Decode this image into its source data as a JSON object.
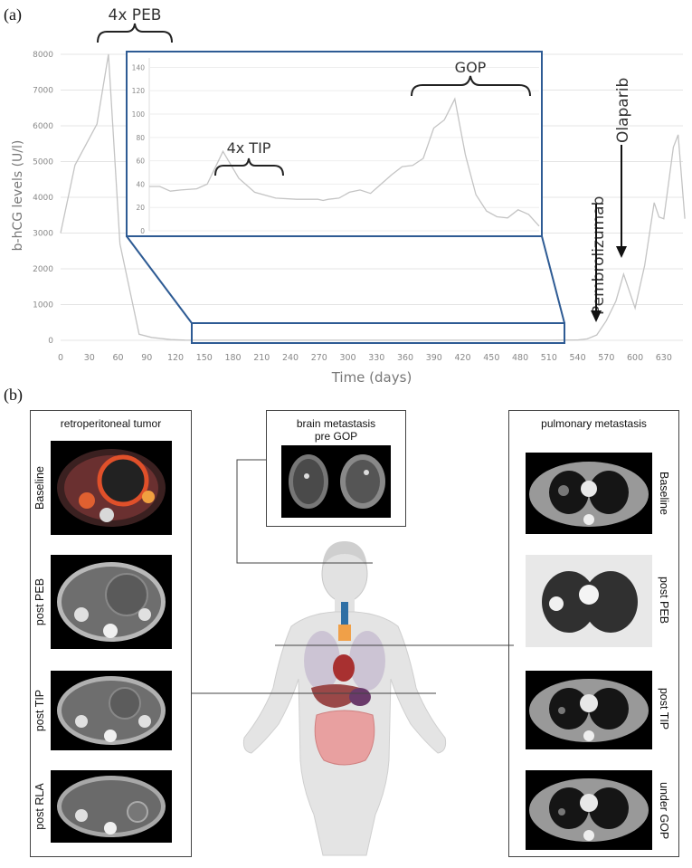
{
  "panel_a_label": "(a)",
  "panel_b_label": "(b)",
  "chart_data": {
    "type": "line",
    "title": "",
    "xlabel": "Time (days)",
    "ylabel": "b-hCG levels (U/l)",
    "xlim": [
      0,
      650
    ],
    "ylim": [
      0,
      8000
    ],
    "xticks": [
      0,
      30,
      60,
      90,
      120,
      150,
      180,
      210,
      240,
      270,
      300,
      330,
      360,
      390,
      420,
      450,
      480,
      510,
      540,
      570,
      600,
      630
    ],
    "yticks": [
      0,
      1000,
      2000,
      3000,
      4000,
      5000,
      6000,
      7000,
      8000
    ],
    "series": [
      {
        "name": "b-hCG",
        "x": [
          0,
          15,
          38,
          50,
          62,
          82,
          95,
          115,
          130,
          140,
          510,
          540,
          550,
          560,
          570,
          580,
          588,
          600,
          610,
          620,
          625,
          630,
          640,
          645,
          652
        ],
        "y": [
          3000,
          4900,
          6050,
          8000,
          2700,
          170,
          80,
          20,
          5,
          2,
          2,
          10,
          40,
          150,
          550,
          1100,
          1850,
          900,
          2100,
          3850,
          3450,
          3400,
          5400,
          5750,
          3400
        ]
      }
    ],
    "inset": {
      "ylim": [
        0,
        145
      ],
      "yticks": [
        0,
        20,
        40,
        60,
        80,
        100,
        120,
        140
      ],
      "x": [
        140,
        150,
        160,
        170,
        185,
        195,
        210,
        225,
        240,
        260,
        280,
        300,
        305,
        310,
        320,
        330,
        340,
        350,
        360,
        370,
        380,
        390,
        400,
        410,
        420,
        430,
        440,
        450,
        460,
        470,
        480,
        490,
        500,
        510
      ],
      "y": [
        38,
        38,
        34,
        35,
        36,
        40,
        68,
        45,
        33,
        28,
        27,
        27,
        26,
        27,
        28,
        33,
        35,
        32,
        40,
        48,
        55,
        56,
        62,
        88,
        95,
        113,
        65,
        31,
        17,
        12,
        11,
        18,
        14,
        4
      ]
    },
    "annotations": [
      {
        "text": "4x PEB"
      },
      {
        "text": "4x TIP"
      },
      {
        "text": "GOP"
      },
      {
        "text": "Pembrolizumab"
      },
      {
        "text": "Olaparib"
      }
    ]
  },
  "panel_b": {
    "left_box": {
      "title": "retroperitoneal tumor",
      "items": [
        {
          "label": "Baseline"
        },
        {
          "label": "post PEB"
        },
        {
          "label": "post TIP"
        },
        {
          "label": "post RLA"
        }
      ]
    },
    "center_box": {
      "title_line1": "brain metastasis",
      "title_line2": "pre GOP"
    },
    "right_box": {
      "title": "pulmonary metastasis",
      "items": [
        {
          "label": "Baseline"
        },
        {
          "label": "post PEB"
        },
        {
          "label": "post TIP"
        },
        {
          "label": "under GOP"
        }
      ]
    }
  },
  "colors": {
    "line": "#c8c8c8",
    "inset_border": "#2e5b94",
    "axis_text": "#888888"
  }
}
